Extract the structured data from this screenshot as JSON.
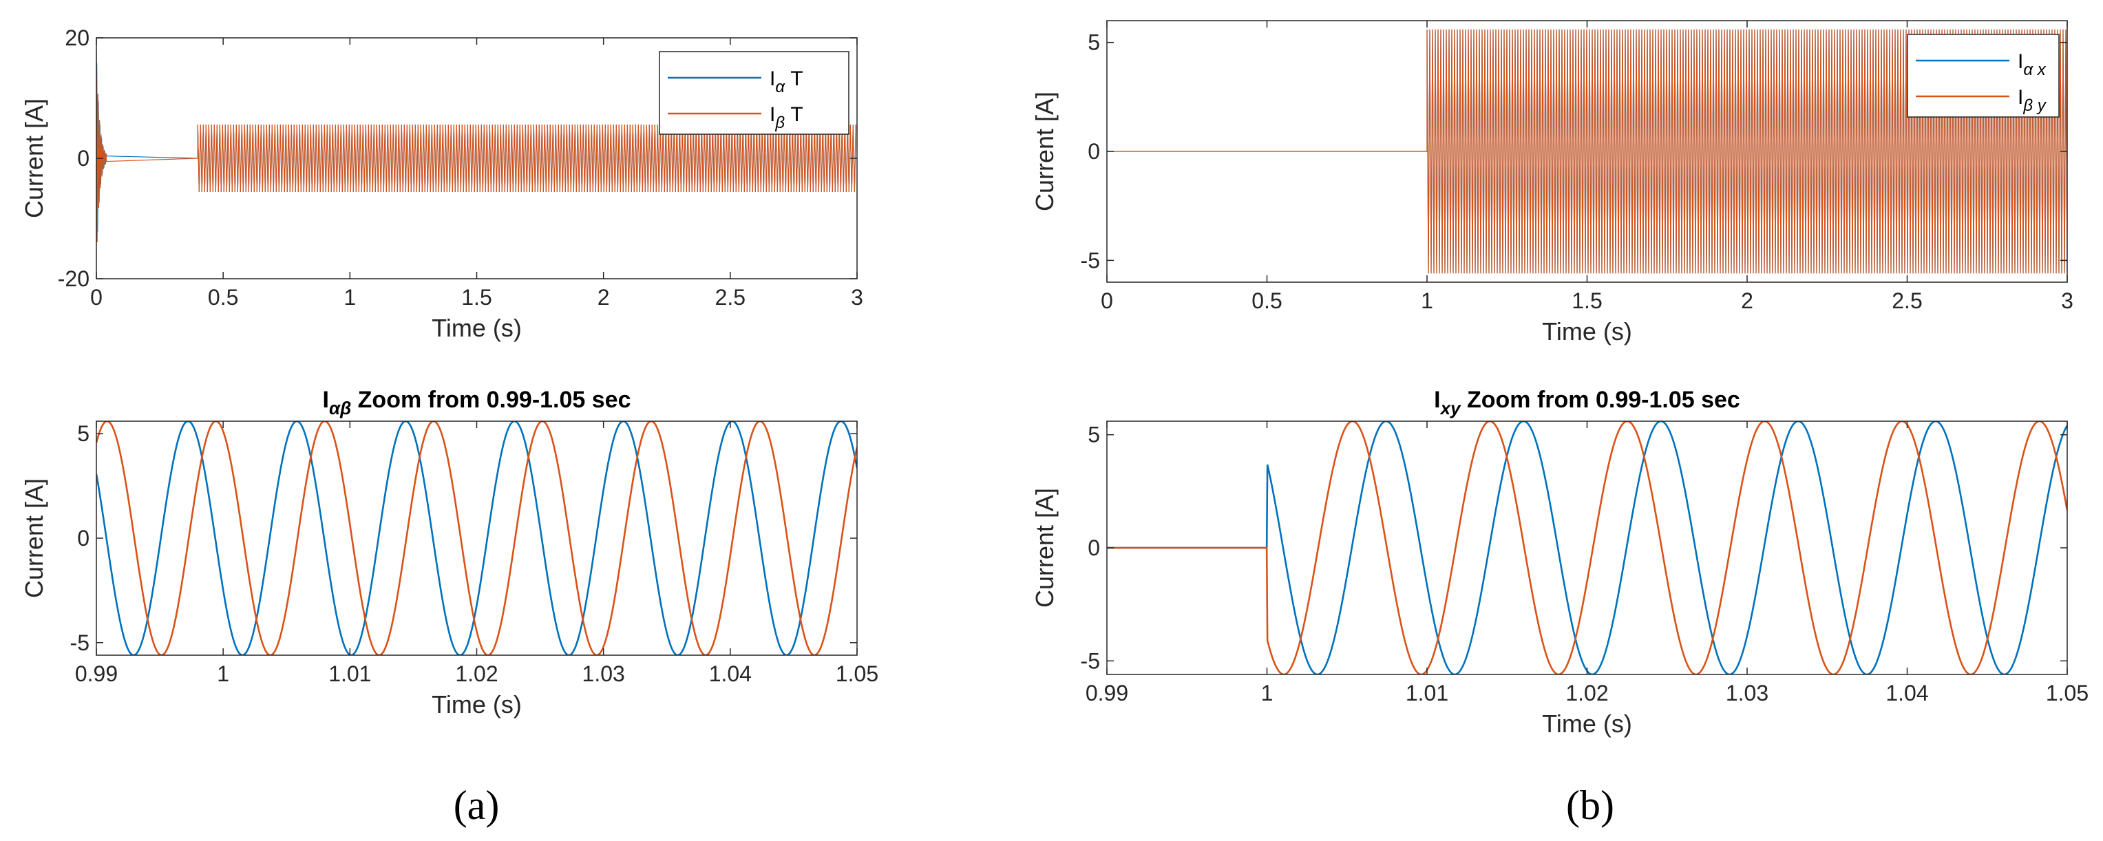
{
  "colors": {
    "blue": "#0072BD",
    "orange": "#D95319",
    "axis": "#262626"
  },
  "captions": [
    "(a)",
    "(b)"
  ],
  "chart_data": [
    {
      "id": "a-top",
      "type": "line",
      "title": "",
      "xlabel": "Time (s)",
      "ylabel": "Current [A]",
      "xlim": [
        0,
        3
      ],
      "ylim": [
        -20,
        20
      ],
      "xticks": [
        0,
        0.5,
        1,
        1.5,
        2,
        2.5,
        3
      ],
      "xtick_labels": [
        "0",
        "0.5",
        "1",
        "1.5",
        "2",
        "2.5",
        "3"
      ],
      "yticks": [
        -20,
        0,
        20
      ],
      "ytick_labels": [
        "-20",
        "0",
        "20"
      ],
      "legend_position": "top-right",
      "series": [
        {
          "name": "IαT",
          "legend_main": "I",
          "legend_sub": "α",
          "legend_suffix": " T",
          "color": "blue",
          "amplitude": 5.6
        },
        {
          "name": "IβT",
          "legend_main": "I",
          "legend_sub": "β",
          "legend_suffix": " T",
          "color": "orange",
          "amplitude": 5.6
        }
      ],
      "startup_transient": {
        "t_end": 0.04,
        "peak": 18
      },
      "oscillation_start": 0.4,
      "oscillation_amplitude": 5.6
    },
    {
      "id": "a-bottom",
      "type": "line",
      "title_main": "I",
      "title_sub": "αβ",
      "title_rest": " Zoom from 0.99-1.05 sec",
      "xlabel": "Time (s)",
      "ylabel": "Current [A]",
      "xlim": [
        0.99,
        1.05
      ],
      "ylim": [
        -5.6,
        5.6
      ],
      "xticks": [
        0.99,
        1,
        1.01,
        1.02,
        1.03,
        1.04,
        1.05
      ],
      "xtick_labels": [
        "0.99",
        "1",
        "1.01",
        "1.02",
        "1.03",
        "1.04",
        "1.05"
      ],
      "yticks": [
        -5,
        0,
        5
      ],
      "ytick_labels": [
        "-5",
        "0",
        "5"
      ],
      "series": [
        {
          "name": "Iα",
          "color": "blue",
          "amplitude": 5.6,
          "frequency_hz": 116.5,
          "zero_cross_rising": 0.9865
        },
        {
          "name": "Iβ",
          "color": "orange",
          "amplitude": 5.6,
          "frequency_hz": 116.5,
          "zero_cross_rising": 0.9887
        }
      ]
    },
    {
      "id": "b-top",
      "type": "line",
      "title": "",
      "xlabel": "Time (s)",
      "ylabel": "Current [A]",
      "xlim": [
        0,
        3
      ],
      "ylim": [
        -6,
        6
      ],
      "xticks": [
        0,
        0.5,
        1,
        1.5,
        2,
        2.5,
        3
      ],
      "xtick_labels": [
        "0",
        "0.5",
        "1",
        "1.5",
        "2",
        "2.5",
        "3"
      ],
      "yticks": [
        -5,
        0,
        5
      ],
      "ytick_labels": [
        "-5",
        "0",
        "5"
      ],
      "legend_position": "top-right",
      "series": [
        {
          "name": "Iαx",
          "legend_main": "I",
          "legend_sub": "α x",
          "color": "blue",
          "amplitude": 5.6
        },
        {
          "name": "Iβy",
          "legend_main": "I",
          "legend_sub": "β y",
          "color": "orange",
          "amplitude": 5.6
        }
      ],
      "oscillation_start": 1.0,
      "oscillation_amplitude": 5.6
    },
    {
      "id": "b-bottom",
      "type": "line",
      "title_main": "I",
      "title_sub": "xy",
      "title_rest": " Zoom from 0.99-1.05 sec",
      "xlabel": "Time (s)",
      "ylabel": "Current [A]",
      "xlim": [
        0.99,
        1.05
      ],
      "ylim": [
        -5.6,
        5.6
      ],
      "xticks": [
        0.99,
        1,
        1.01,
        1.02,
        1.03,
        1.04,
        1.05
      ],
      "xtick_labels": [
        "0.99",
        "1",
        "1.01",
        "1.02",
        "1.03",
        "1.04",
        "1.05"
      ],
      "yticks": [
        -5,
        0,
        5
      ],
      "ytick_labels": [
        "-5",
        "0",
        "5"
      ],
      "series": [
        {
          "name": "Ix",
          "color": "blue",
          "amplitude": 5.6,
          "frequency_hz": 116.5,
          "zero_cross_rising": 1.0053,
          "start": 1.0
        },
        {
          "name": "Iy",
          "color": "orange",
          "amplitude": 5.6,
          "frequency_hz": 116.5,
          "zero_cross_rising": 1.0032,
          "start": 1.0
        }
      ]
    }
  ]
}
